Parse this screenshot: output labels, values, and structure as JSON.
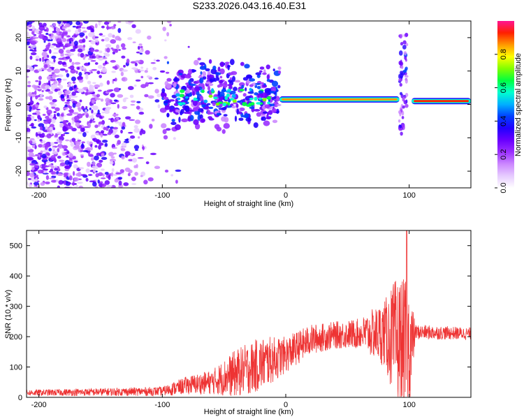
{
  "title": "S233.2026.043.16.40.E31",
  "chart_data": [
    {
      "type": "heatmap",
      "name": "spectrogram",
      "xlabel": "Height of straight line (km)",
      "ylabel": "Frequency (Hz)",
      "xlim": [
        -210,
        150
      ],
      "ylim": [
        -25,
        25
      ],
      "x_ticks": [
        -200,
        -100,
        0,
        100
      ],
      "y_ticks": [
        -20,
        -10,
        0,
        10,
        20
      ],
      "colorbar": {
        "label": "Normalized spectral amplitude",
        "range": [
          0,
          1
        ],
        "ticks": [
          "0.0",
          "0.2",
          "0.4",
          "0.6",
          "0.8"
        ],
        "colors": [
          "#ffffff",
          "#e6ccff",
          "#cc88ff",
          "#9b30ff",
          "#6a00ff",
          "#2200ff",
          "#0040ff",
          "#00b0ff",
          "#00ffd0",
          "#00ff40",
          "#80ff00",
          "#ffff00",
          "#ff9900",
          "#ff2000",
          "#ff1493"
        ]
      },
      "features": {
        "noise_region_x": [
          -210,
          -70
        ],
        "scattered_region_x": [
          -100,
          -5
        ],
        "line_segments": [
          {
            "x": [
              -5,
              92
            ],
            "freq": 1.5,
            "amplitude": 0.85
          },
          {
            "x": [
              102,
              150
            ],
            "freq": 1,
            "amplitude": 0.9
          }
        ],
        "burst_near_x": 95,
        "freq_band_hz": [
          -25,
          25
        ]
      }
    },
    {
      "type": "line",
      "name": "snr",
      "xlabel": "Height of straight line (km)",
      "ylabel": "SNR (10 * v/v)",
      "xlim": [
        -210,
        150
      ],
      "ylim": [
        0,
        550
      ],
      "x_ticks": [
        -200,
        -100,
        0,
        100
      ],
      "y_ticks": [
        0,
        100,
        200,
        300,
        400,
        500
      ],
      "color": "#ee3333",
      "series_envelope": [
        {
          "x": -210,
          "base": 15,
          "noise": 10
        },
        {
          "x": -100,
          "base": 20,
          "noise": 15
        },
        {
          "x": -80,
          "base": 40,
          "noise": 30
        },
        {
          "x": -60,
          "base": 50,
          "noise": 40
        },
        {
          "x": -40,
          "base": 80,
          "noise": 80
        },
        {
          "x": -20,
          "base": 110,
          "noise": 90
        },
        {
          "x": 0,
          "base": 140,
          "noise": 60
        },
        {
          "x": 20,
          "base": 190,
          "noise": 50
        },
        {
          "x": 40,
          "base": 205,
          "noise": 45
        },
        {
          "x": 60,
          "base": 210,
          "noise": 50
        },
        {
          "x": 80,
          "base": 210,
          "noise": 110
        },
        {
          "x": 90,
          "base": 180,
          "noise": 220
        },
        {
          "x": 100,
          "base": 150,
          "noise": 230
        },
        {
          "x": 105,
          "base": 215,
          "noise": 25
        },
        {
          "x": 150,
          "base": 210,
          "noise": 20
        }
      ],
      "peak": {
        "x": 98,
        "y": 550
      }
    }
  ]
}
